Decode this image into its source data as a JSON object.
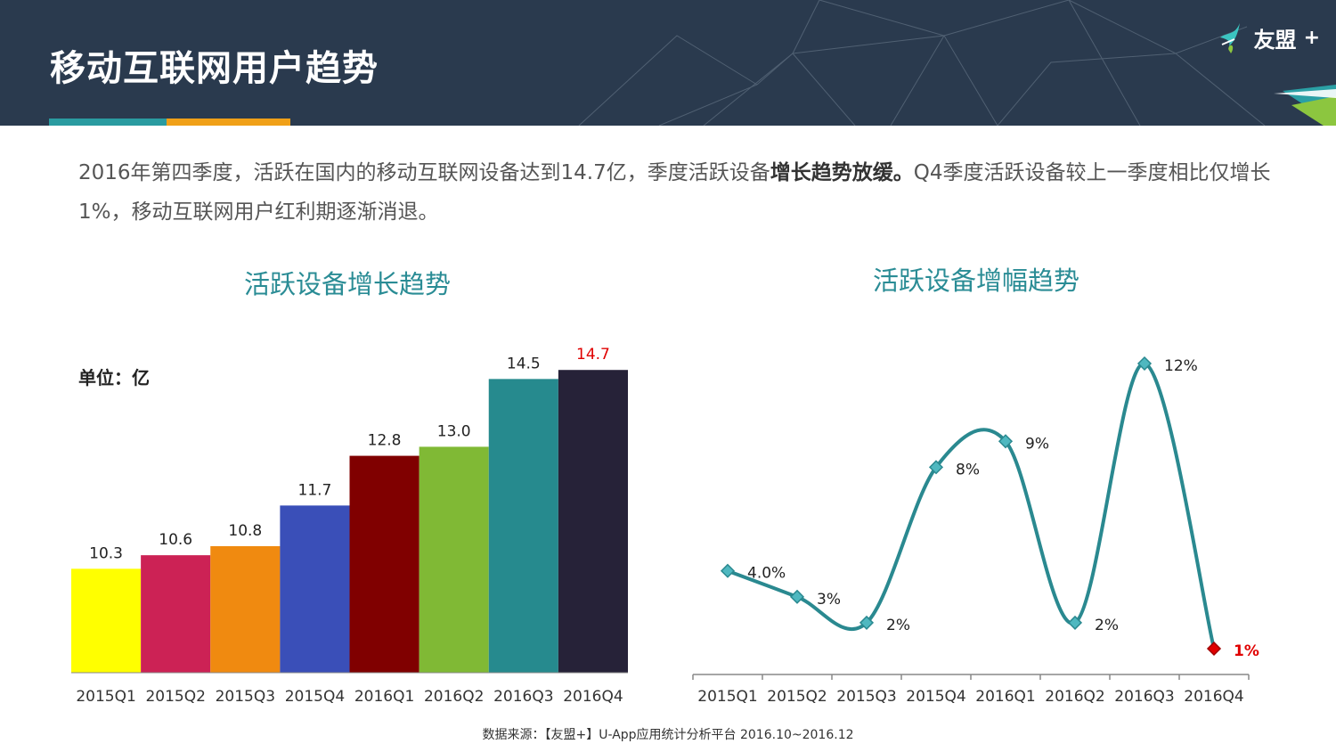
{
  "header": {
    "title": "移动互联网用户趋势",
    "logo_text": "友盟",
    "logo_plus": "+"
  },
  "summary": {
    "part1": "2016年第四季度，活跃在国内的移动互联网设备达到14.7亿，季度活跃设备",
    "bold": "增长趋势放缓。",
    "part2": "Q4季度活跃设备较上一季度相比仅增长1%，移动互联网用户红利期逐渐消退。"
  },
  "source": "数据来源：【友盟+】U-App应用统计分析平台 2016.10~2016.12",
  "colors": {
    "header_bg": "#2a3a4e",
    "title_teal": "#2a8c95",
    "line": "#2a8990",
    "highlight_red": "#e00000"
  },
  "chart_data": [
    {
      "type": "bar",
      "title": "活跃设备增长趋势",
      "unit_label": "单位：亿",
      "categories": [
        "2015Q1",
        "2015Q2",
        "2015Q3",
        "2015Q4",
        "2016Q1",
        "2016Q2",
        "2016Q3",
        "2016Q4"
      ],
      "values": [
        10.3,
        10.6,
        10.8,
        11.7,
        12.8,
        13.0,
        14.5,
        14.7
      ],
      "labels": [
        "10.3",
        "10.6",
        "10.8",
        "11.7",
        "12.8",
        "13.0",
        "14.5",
        "14.7"
      ],
      "bar_colors": [
        "#ffff00",
        "#cc2255",
        "#f08a10",
        "#3a4fb8",
        "#800000",
        "#80b935",
        "#268a8e",
        "#262238"
      ],
      "label_colors": [
        "#222",
        "#222",
        "#222",
        "#222",
        "#222",
        "#222",
        "#222",
        "#e00000"
      ],
      "ylim": [
        8,
        15
      ]
    },
    {
      "type": "line",
      "title": "活跃设备增幅趋势",
      "categories": [
        "2015Q1",
        "2015Q2",
        "2015Q3",
        "2015Q4",
        "2016Q1",
        "2016Q2",
        "2016Q3",
        "2016Q4"
      ],
      "values": [
        4.0,
        3,
        2,
        8,
        9,
        2,
        12,
        1
      ],
      "labels": [
        "4.0%",
        "3%",
        "2%",
        "8%",
        "9%",
        "2%",
        "12%",
        "1%"
      ],
      "label_colors": [
        "#222",
        "#222",
        "#222",
        "#222",
        "#222",
        "#222",
        "#222",
        "#e00000"
      ],
      "ylim": [
        0,
        12
      ],
      "smooth": true
    }
  ]
}
